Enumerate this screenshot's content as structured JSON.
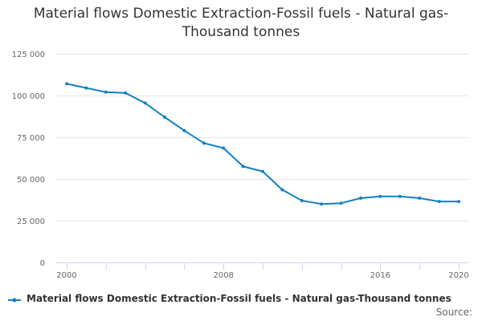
{
  "colors": {
    "series": "#1281c3",
    "grid": "#e6e6e6",
    "axis_line": "#ccd6eb"
  },
  "chart_data": {
    "type": "line",
    "title": "Material flows Domestic Extraction-Fossil fuels - Natural gas-Thousand tonnes",
    "xlabel": "",
    "ylabel": "",
    "xlim": [
      2000,
      2020
    ],
    "ylim": [
      0,
      125000
    ],
    "x_ticks": [
      2000,
      2008,
      2016,
      2020
    ],
    "x_tick_labels": [
      "2000",
      "2008",
      "2016",
      "2020"
    ],
    "y_ticks": [
      0,
      25000,
      50000,
      75000,
      100000,
      125000
    ],
    "y_tick_labels": [
      "0",
      "25 000",
      "50 000",
      "75 000",
      "100 000",
      "125 000"
    ],
    "grid": true,
    "legend_position": "bottom",
    "series": [
      {
        "name": "Material flows Domestic Extraction-Fossil fuels - Natural gas-Thousand tonnes",
        "x": [
          2000,
          2001,
          2002,
          2003,
          2004,
          2005,
          2006,
          2007,
          2008,
          2009,
          2010,
          2011,
          2012,
          2013,
          2014,
          2015,
          2016,
          2017,
          2018,
          2019,
          2020
        ],
        "values": [
          107000,
          104500,
          102000,
          101500,
          95500,
          87000,
          79000,
          71500,
          68500,
          57500,
          54500,
          43500,
          37000,
          35000,
          35500,
          38500,
          39500,
          39500,
          38500,
          36500,
          36500
        ]
      }
    ],
    "credits": "Source:"
  }
}
